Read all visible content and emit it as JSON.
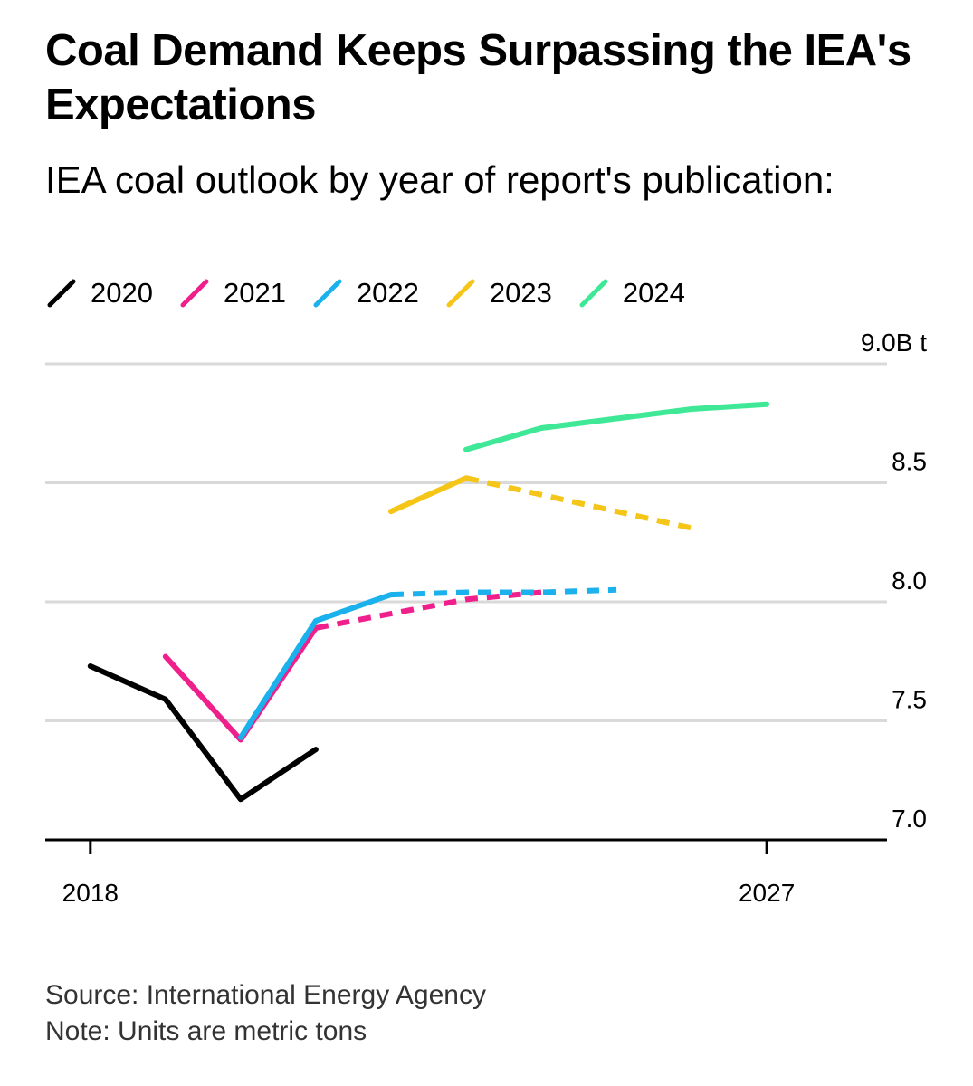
{
  "chart_data": {
    "type": "line",
    "title": "Coal Demand Keeps Surpassing the IEA's Expectations",
    "subtitle": "IEA coal outlook by year of report's publication:",
    "y_unit_label": "9.0B t",
    "ylim": [
      7.0,
      9.0
    ],
    "y_ticks": [
      {
        "value": 7.0,
        "label": "7.0"
      },
      {
        "value": 7.5,
        "label": "7.5"
      },
      {
        "value": 8.0,
        "label": "8.0"
      },
      {
        "value": 8.5,
        "label": "8.5"
      },
      {
        "value": 9.0,
        "label": "9.0B t"
      }
    ],
    "xlim": [
      2017.4,
      2028.6
    ],
    "x_ticks": [
      {
        "value": 2018,
        "label": "2018"
      },
      {
        "value": 2027,
        "label": "2027"
      }
    ],
    "grid": true,
    "series": [
      {
        "name": "2020",
        "color": "#000000",
        "actual": [
          [
            2018,
            7.73
          ],
          [
            2019,
            7.59
          ],
          [
            2020,
            7.17
          ],
          [
            2021,
            7.38
          ]
        ],
        "forecast": []
      },
      {
        "name": "2021",
        "color": "#ef1f8c",
        "actual": [
          [
            2019,
            7.77
          ],
          [
            2020,
            7.42
          ],
          [
            2021,
            7.89
          ]
        ],
        "forecast": [
          [
            2021,
            7.89
          ],
          [
            2022,
            7.95
          ],
          [
            2023,
            8.01
          ],
          [
            2024,
            8.04
          ]
        ]
      },
      {
        "name": "2022",
        "color": "#1ab1ec",
        "actual": [
          [
            2020,
            7.43
          ],
          [
            2021,
            7.92
          ],
          [
            2022,
            8.03
          ]
        ],
        "forecast": [
          [
            2022,
            8.03
          ],
          [
            2023,
            8.04
          ],
          [
            2024,
            8.04
          ],
          [
            2025,
            8.05
          ]
        ]
      },
      {
        "name": "2023",
        "color": "#f5c518",
        "actual": [
          [
            2022,
            8.38
          ],
          [
            2023,
            8.52
          ]
        ],
        "forecast": [
          [
            2023,
            8.52
          ],
          [
            2024,
            8.45
          ],
          [
            2025,
            8.38
          ],
          [
            2026,
            8.31
          ]
        ]
      },
      {
        "name": "2024",
        "color": "#3ee896",
        "actual": [
          [
            2023,
            8.64
          ],
          [
            2024,
            8.73
          ],
          [
            2025,
            8.77
          ],
          [
            2026,
            8.81
          ],
          [
            2027,
            8.83
          ]
        ],
        "forecast": []
      }
    ]
  },
  "footer": {
    "source": "Source: International Energy Agency",
    "note": "Note: Units are metric tons"
  }
}
